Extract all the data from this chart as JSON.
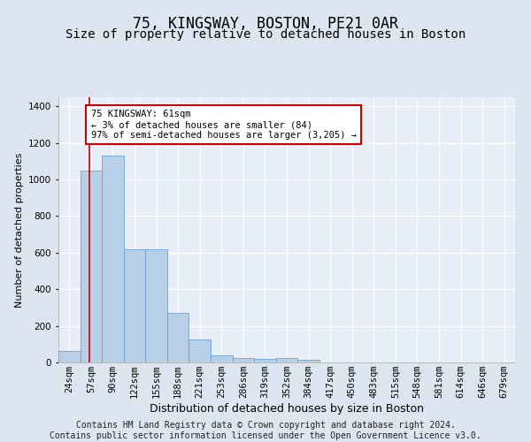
{
  "title1": "75, KINGSWAY, BOSTON, PE21 0AR",
  "title2": "Size of property relative to detached houses in Boston",
  "xlabel": "Distribution of detached houses by size in Boston",
  "ylabel": "Number of detached properties",
  "categories": [
    "24sqm",
    "57sqm",
    "90sqm",
    "122sqm",
    "155sqm",
    "188sqm",
    "221sqm",
    "253sqm",
    "286sqm",
    "319sqm",
    "352sqm",
    "384sqm",
    "417sqm",
    "450sqm",
    "483sqm",
    "515sqm",
    "548sqm",
    "581sqm",
    "614sqm",
    "646sqm",
    "679sqm"
  ],
  "bar_values": [
    62,
    1050,
    1130,
    620,
    620,
    270,
    125,
    40,
    22,
    18,
    22,
    15,
    0,
    0,
    0,
    0,
    0,
    0,
    0,
    0,
    0
  ],
  "bar_color": "#b8cfe8",
  "bar_edge_color": "#6b9fd4",
  "ylim": [
    0,
    1450
  ],
  "yticks": [
    0,
    200,
    400,
    600,
    800,
    1000,
    1200,
    1400
  ],
  "vline_color": "#cc0000",
  "vline_x": 0.94,
  "annotation_text": "75 KINGSWAY: 61sqm\n← 3% of detached houses are smaller (84)\n97% of semi-detached houses are larger (3,205) →",
  "annotation_box_color": "#ffffff",
  "annotation_box_edge_color": "#cc0000",
  "footer_text": "Contains HM Land Registry data © Crown copyright and database right 2024.\nContains public sector information licensed under the Open Government Licence v3.0.",
  "background_color": "#dde6f0",
  "plot_background_color": "#e8eef7",
  "grid_color": "#ffffff",
  "title1_fontsize": 12,
  "title2_fontsize": 10,
  "xlabel_fontsize": 9,
  "ylabel_fontsize": 8,
  "tick_fontsize": 7.5,
  "footer_fontsize": 7
}
